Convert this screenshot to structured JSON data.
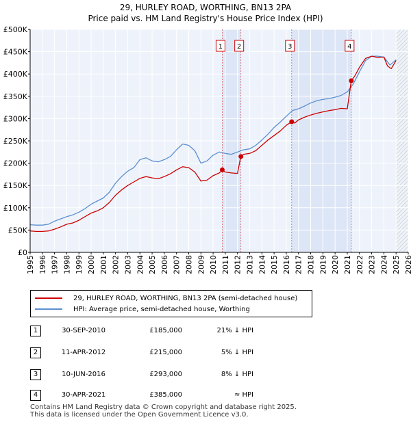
{
  "chart_data": {
    "type": "line",
    "title": "29, HURLEY ROAD, WORTHING, BN13 2PA",
    "subtitle": "Price paid vs. HM Land Registry's House Price Index (HPI)",
    "xlabel": "",
    "ylabel": "",
    "xlim": [
      1995,
      2026
    ],
    "ylim": [
      0,
      500000
    ],
    "y_ticks": [
      {
        "value": 0,
        "label": "£0"
      },
      {
        "value": 50000,
        "label": "£50K"
      },
      {
        "value": 100000,
        "label": "£100K"
      },
      {
        "value": 150000,
        "label": "£150K"
      },
      {
        "value": 200000,
        "label": "£200K"
      },
      {
        "value": 250000,
        "label": "£250K"
      },
      {
        "value": 300000,
        "label": "£300K"
      },
      {
        "value": 350000,
        "label": "£350K"
      },
      {
        "value": 400000,
        "label": "£400K"
      },
      {
        "value": 450000,
        "label": "£450K"
      },
      {
        "value": 500000,
        "label": "£500K"
      }
    ],
    "x_ticks": [
      "1995",
      "1996",
      "1997",
      "1998",
      "1999",
      "2000",
      "2001",
      "2002",
      "2003",
      "2004",
      "2005",
      "2006",
      "2007",
      "2008",
      "2009",
      "2010",
      "2011",
      "2012",
      "2013",
      "2014",
      "2015",
      "2016",
      "2017",
      "2018",
      "2019",
      "2020",
      "2021",
      "2022",
      "2023",
      "2024",
      "2025",
      "2026"
    ],
    "grid": true,
    "forecast_from": 2025.0,
    "series": [
      {
        "name": "29, HURLEY ROAD, WORTHING, BN13 2PA (semi-detached house)",
        "color": "#cc0000",
        "points": [
          [
            1995.0,
            48000
          ],
          [
            1995.5,
            47000
          ],
          [
            1996.0,
            47000
          ],
          [
            1996.5,
            48000
          ],
          [
            1997.0,
            52000
          ],
          [
            1997.5,
            57000
          ],
          [
            1998.0,
            63000
          ],
          [
            1998.5,
            66000
          ],
          [
            1999.0,
            72000
          ],
          [
            1999.5,
            80000
          ],
          [
            2000.0,
            88000
          ],
          [
            2000.5,
            93000
          ],
          [
            2001.0,
            100000
          ],
          [
            2001.5,
            112000
          ],
          [
            2002.0,
            128000
          ],
          [
            2002.5,
            140000
          ],
          [
            2003.0,
            150000
          ],
          [
            2003.5,
            158000
          ],
          [
            2004.0,
            166000
          ],
          [
            2004.5,
            170000
          ],
          [
            2005.0,
            167000
          ],
          [
            2005.5,
            165000
          ],
          [
            2006.0,
            170000
          ],
          [
            2006.5,
            176000
          ],
          [
            2007.0,
            185000
          ],
          [
            2007.5,
            192000
          ],
          [
            2008.0,
            190000
          ],
          [
            2008.5,
            180000
          ],
          [
            2009.0,
            160000
          ],
          [
            2009.5,
            162000
          ],
          [
            2010.0,
            172000
          ],
          [
            2010.5,
            178000
          ],
          [
            2010.75,
            185000
          ],
          [
            2011.0,
            180000
          ],
          [
            2011.5,
            178000
          ],
          [
            2012.0,
            177000
          ],
          [
            2012.27,
            215000
          ],
          [
            2012.5,
            220000
          ],
          [
            2013.0,
            222000
          ],
          [
            2013.5,
            228000
          ],
          [
            2014.0,
            240000
          ],
          [
            2014.5,
            252000
          ],
          [
            2015.0,
            262000
          ],
          [
            2015.5,
            272000
          ],
          [
            2016.0,
            285000
          ],
          [
            2016.44,
            293000
          ],
          [
            2016.7,
            290000
          ],
          [
            2017.0,
            297000
          ],
          [
            2017.5,
            303000
          ],
          [
            2018.0,
            308000
          ],
          [
            2018.5,
            312000
          ],
          [
            2019.0,
            315000
          ],
          [
            2019.5,
            318000
          ],
          [
            2020.0,
            320000
          ],
          [
            2020.5,
            323000
          ],
          [
            2021.0,
            322000
          ],
          [
            2021.33,
            385000
          ],
          [
            2021.6,
            395000
          ],
          [
            2022.0,
            415000
          ],
          [
            2022.5,
            435000
          ],
          [
            2023.0,
            440000
          ],
          [
            2023.5,
            437000
          ],
          [
            2024.0,
            438000
          ],
          [
            2024.3,
            418000
          ],
          [
            2024.6,
            412000
          ],
          [
            2025.0,
            430000
          ]
        ]
      },
      {
        "name": "HPI: Average price, semi-detached house, Worthing",
        "color": "#5b8fd0",
        "points": [
          [
            1995.0,
            62000
          ],
          [
            1995.5,
            61000
          ],
          [
            1996.0,
            61000
          ],
          [
            1996.5,
            63000
          ],
          [
            1997.0,
            70000
          ],
          [
            1997.5,
            75000
          ],
          [
            1998.0,
            80000
          ],
          [
            1998.5,
            84000
          ],
          [
            1999.0,
            90000
          ],
          [
            1999.5,
            98000
          ],
          [
            2000.0,
            108000
          ],
          [
            2000.5,
            115000
          ],
          [
            2001.0,
            122000
          ],
          [
            2001.5,
            135000
          ],
          [
            2002.0,
            155000
          ],
          [
            2002.5,
            170000
          ],
          [
            2003.0,
            182000
          ],
          [
            2003.5,
            190000
          ],
          [
            2004.0,
            208000
          ],
          [
            2004.5,
            212000
          ],
          [
            2005.0,
            205000
          ],
          [
            2005.5,
            203000
          ],
          [
            2006.0,
            208000
          ],
          [
            2006.5,
            215000
          ],
          [
            2007.0,
            230000
          ],
          [
            2007.5,
            243000
          ],
          [
            2008.0,
            240000
          ],
          [
            2008.5,
            228000
          ],
          [
            2009.0,
            200000
          ],
          [
            2009.5,
            205000
          ],
          [
            2010.0,
            218000
          ],
          [
            2010.5,
            225000
          ],
          [
            2011.0,
            222000
          ],
          [
            2011.5,
            220000
          ],
          [
            2012.0,
            225000
          ],
          [
            2012.5,
            230000
          ],
          [
            2013.0,
            232000
          ],
          [
            2013.5,
            240000
          ],
          [
            2014.0,
            252000
          ],
          [
            2014.5,
            265000
          ],
          [
            2015.0,
            280000
          ],
          [
            2015.5,
            292000
          ],
          [
            2016.0,
            305000
          ],
          [
            2016.5,
            318000
          ],
          [
            2017.0,
            322000
          ],
          [
            2017.5,
            328000
          ],
          [
            2018.0,
            335000
          ],
          [
            2018.5,
            340000
          ],
          [
            2019.0,
            343000
          ],
          [
            2019.5,
            345000
          ],
          [
            2020.0,
            348000
          ],
          [
            2020.5,
            352000
          ],
          [
            2021.0,
            360000
          ],
          [
            2021.5,
            378000
          ],
          [
            2022.0,
            405000
          ],
          [
            2022.5,
            430000
          ],
          [
            2023.0,
            440000
          ],
          [
            2023.5,
            440000
          ],
          [
            2024.0,
            438000
          ],
          [
            2024.5,
            420000
          ],
          [
            2025.0,
            432000
          ]
        ]
      }
    ],
    "sales": [
      {
        "label": "1",
        "x": 2010.75,
        "price": 185000
      },
      {
        "label": "2",
        "x": 2012.28,
        "price": 215000
      },
      {
        "label": "3",
        "x": 2016.44,
        "price": 293000
      },
      {
        "label": "4",
        "x": 2021.33,
        "price": 385000
      }
    ]
  },
  "header": {
    "title": "29, HURLEY ROAD, WORTHING, BN13 2PA",
    "subtitle": "Price paid vs. HM Land Registry's House Price Index (HPI)"
  },
  "legend": {
    "property": "29, HURLEY ROAD, WORTHING, BN13 2PA (semi-detached house)",
    "hpi": "HPI: Average price, semi-detached house, Worthing"
  },
  "transactions": [
    {
      "num": "1",
      "date": "30-SEP-2010",
      "price": "£185,000",
      "hpi": "21% ↓ HPI"
    },
    {
      "num": "2",
      "date": "11-APR-2012",
      "price": "£215,000",
      "hpi": "5% ↓ HPI"
    },
    {
      "num": "3",
      "date": "10-JUN-2016",
      "price": "£293,000",
      "hpi": "8% ↓ HPI"
    },
    {
      "num": "4",
      "date": "30-APR-2021",
      "price": "£385,000",
      "hpi": "≈ HPI"
    }
  ],
  "footer": {
    "line1": "Contains HM Land Registry data © Crown copyright and database right 2025.",
    "line2": "This data is licensed under the Open Government Licence v3.0."
  },
  "colors": {
    "property": "#cc0000",
    "hpi": "#5b8fd0",
    "plot_bg": "#eef3fb",
    "sale_band": "#dde6f6"
  }
}
